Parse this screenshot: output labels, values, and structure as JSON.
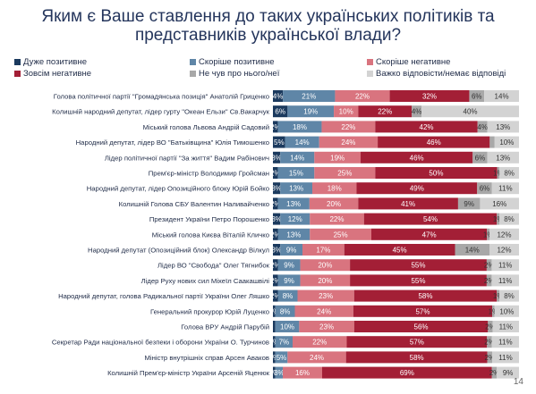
{
  "title_line1": "Яким є Ваше ставлення до таких українських політиків та",
  "title_line2": "представників української влади?",
  "page_number": "14",
  "chart_data": {
    "type": "bar",
    "stacked": true,
    "orientation": "horizontal",
    "legend_position": "top",
    "categories": [
      "Голова політичної партії \"Громадянська позиція\" Анатолій Гриценко",
      "Колишній народний депутат, лідер гурту \"Океан Ельзи\" Св.Вакарчук",
      "Міський голова Львова Андрій Садовий",
      "Народний депутат, лідер ВО \"Батьківщина\" Юлія Тимошенко",
      "Лідер політичної партії \"За життя\" Вадим Рабінович",
      "Прем'єр-міністр Володимир Гройсман",
      "Народний депутат, лідер Опозиційного блоку Юрій Бойко",
      "Колишній Голова СБУ Валентин Наливайченко",
      "Президент України Петро Порошенко",
      "Міський голова Києва Віталій Кличко",
      "Народний депутат (Опозиційний блок) Олександр Вілкул",
      "Лідер ВО \"Свобода\" Олег Тягнибок",
      "Лідер Руху нових сил Міхеїл Саакашвілі",
      "Народний депутат, голова Радикальної партії України Олег Ляшко",
      "Генеральний прокурор Юрій Луценко",
      "Голова ВРУ Андрій Парубій",
      "Секретар Ради національної безпеки і оборони України О. Турчинов",
      "Міністр внутрішніх справ Арсен Аваков",
      "Колишній Прем'єр-міністр України Арсеній Яценюк"
    ],
    "series": [
      {
        "name": "Дуже позитивне",
        "color": "#1b3a5e",
        "values": [
          4,
          6,
          2,
          5,
          3,
          2,
          3,
          2,
          3,
          2,
          3,
          2,
          2,
          2,
          1,
          1,
          1,
          1,
          1
        ]
      },
      {
        "name": "Скоріше позитивне",
        "color": "#5f86a7",
        "values": [
          21,
          19,
          18,
          14,
          14,
          15,
          13,
          13,
          12,
          13,
          9,
          9,
          9,
          8,
          8,
          10,
          7,
          5,
          3
        ]
      },
      {
        "name": "Скоріше негативне",
        "color": "#d9747f",
        "values": [
          22,
          10,
          22,
          24,
          19,
          25,
          18,
          20,
          22,
          25,
          17,
          20,
          20,
          23,
          24,
          23,
          22,
          24,
          16
        ]
      },
      {
        "name": "Зовсім негативне",
        "color": "#a31f36",
        "values": [
          32,
          22,
          42,
          46,
          46,
          50,
          49,
          41,
          54,
          47,
          45,
          55,
          55,
          58,
          57,
          56,
          57,
          58,
          69
        ]
      },
      {
        "name": "Не чув про нього/неї",
        "color": "#a8a8a8",
        "values": [
          6,
          4,
          4,
          2,
          6,
          1,
          6,
          9,
          1,
          1,
          14,
          2,
          2,
          1,
          1,
          2,
          2,
          2,
          2
        ]
      },
      {
        "name": "Важко відповісти/немає відповіді",
        "color": "#d3d3d3",
        "values": [
          14,
          40,
          13,
          10,
          13,
          8,
          11,
          16,
          8,
          12,
          12,
          11,
          11,
          8,
          10,
          11,
          11,
          11,
          9
        ]
      }
    ],
    "value_labels": [
      [
        "4%",
        "21%",
        "22%",
        "32%",
        "6%",
        "14%"
      ],
      [
        "6%",
        "19%",
        "10%",
        "22%",
        "4%",
        "40%"
      ],
      [
        "2%",
        "18%",
        "22%",
        "42%",
        "4%",
        "13%"
      ],
      [
        "5%",
        "14%",
        "24%",
        "46%",
        "",
        "10%"
      ],
      [
        "3%",
        "14%",
        "19%",
        "46%",
        "6%",
        "13%"
      ],
      [
        "2%",
        "15%",
        "25%",
        "50%",
        "1%",
        "8%"
      ],
      [
        "3%",
        "13%",
        "18%",
        "49%",
        "6%",
        "11%"
      ],
      [
        "2%",
        "13%",
        "20%",
        "41%",
        "9%",
        "16%"
      ],
      [
        "3%",
        "12%",
        "22%",
        "54%",
        "1%",
        "8%"
      ],
      [
        "2%",
        "13%",
        "25%",
        "47%",
        "1%",
        "12%"
      ],
      [
        "3%",
        "9%",
        "17%",
        "45%",
        "14%",
        "12%"
      ],
      [
        "2%",
        "9%",
        "20%",
        "55%",
        "2%",
        "11%"
      ],
      [
        "2%",
        "9%",
        "20%",
        "55%",
        "2%",
        "11%"
      ],
      [
        "2%",
        "8%",
        "23%",
        "58%",
        "1%",
        "8%"
      ],
      [
        "1%",
        "8%",
        "24%",
        "57%",
        "1%",
        "10%"
      ],
      [
        "",
        "10%",
        "23%",
        "56%",
        "2%",
        "11%"
      ],
      [
        "1%",
        "7%",
        "22%",
        "57%",
        "2%",
        "11%"
      ],
      [
        "1%",
        "5%",
        "24%",
        "58%",
        "2%",
        "11%"
      ],
      [
        "1%",
        "3%",
        "16%",
        "69%",
        "2%",
        "9%"
      ]
    ]
  }
}
